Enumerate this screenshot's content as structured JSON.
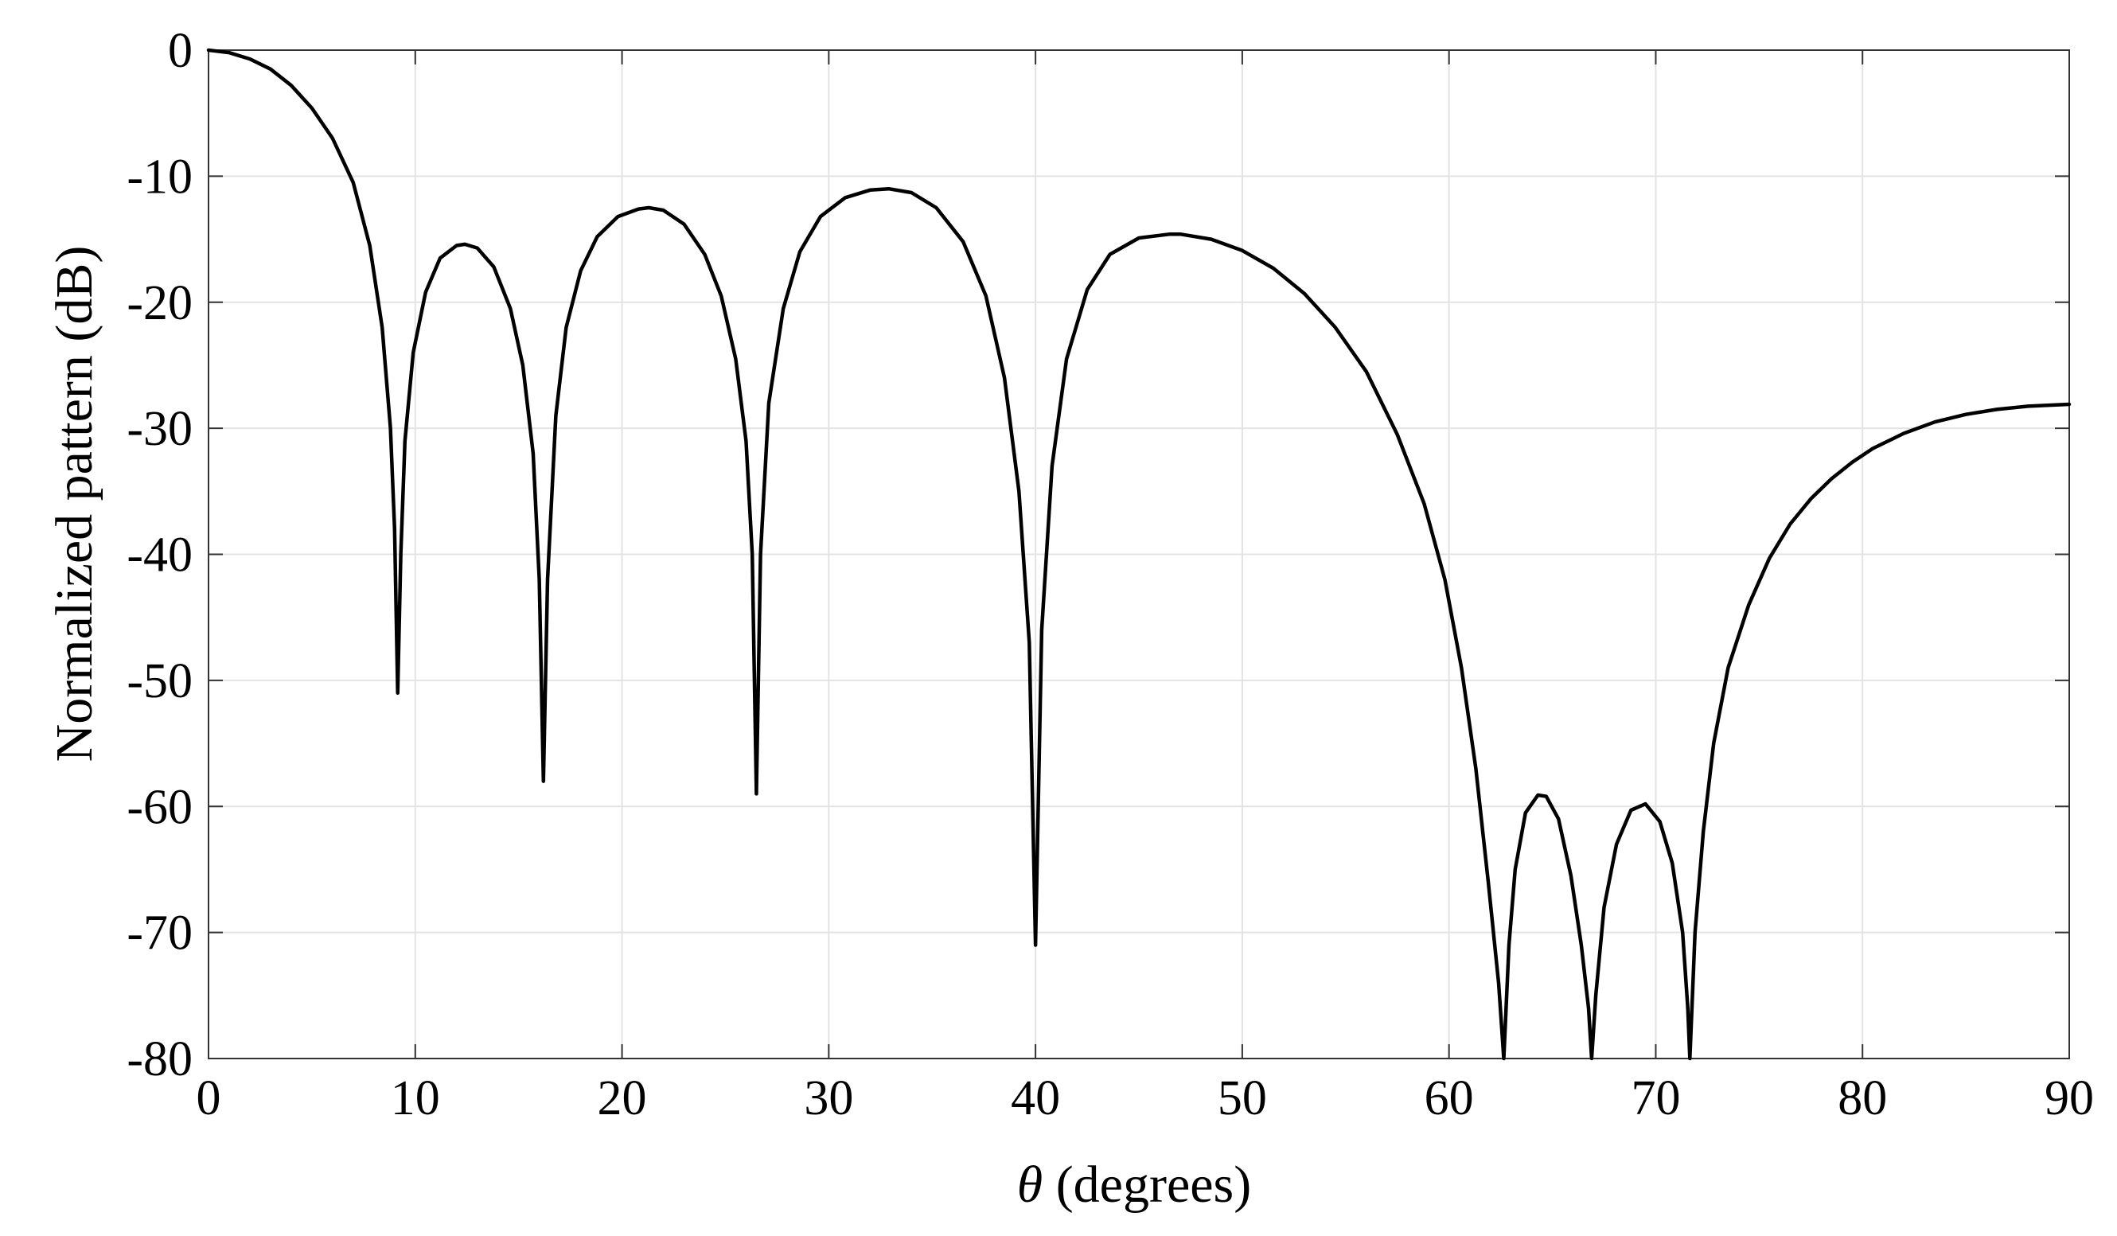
{
  "chart_data": {
    "type": "line",
    "title": "",
    "xlabel_symbol": "θ",
    "xlabel_text": " (degrees)",
    "ylabel": "Normalized pattern  (dB)",
    "xlim": [
      0,
      90
    ],
    "ylim": [
      -80,
      0
    ],
    "grid": true,
    "line_color": "#000000",
    "grid_color": "#e3e3e3",
    "xticks": [
      0,
      10,
      20,
      30,
      40,
      50,
      60,
      70,
      80,
      90
    ],
    "yticks": [
      0,
      -10,
      -20,
      -30,
      -40,
      -50,
      -60,
      -70,
      -80
    ],
    "xtick_labels": [
      "0",
      "10",
      "20",
      "30",
      "40",
      "50",
      "60",
      "70",
      "80",
      "90"
    ],
    "ytick_labels": [
      "0",
      "-10",
      "-20",
      "-30",
      "-40",
      "-50",
      "-60",
      "-70",
      "-80"
    ],
    "series": [
      {
        "name": "Normalized pattern",
        "points": [
          [
            0,
            0
          ],
          [
            1,
            -0.2
          ],
          [
            2,
            -0.7
          ],
          [
            3,
            -1.5
          ],
          [
            4,
            -2.8
          ],
          [
            5,
            -4.6
          ],
          [
            6,
            -7.0
          ],
          [
            7,
            -10.5
          ],
          [
            7.8,
            -15.5
          ],
          [
            8.4,
            -22
          ],
          [
            8.8,
            -30
          ],
          [
            9.0,
            -38
          ],
          [
            9.15,
            -51
          ],
          [
            9.3,
            -40
          ],
          [
            9.5,
            -31
          ],
          [
            9.9,
            -24
          ],
          [
            10.5,
            -19.2
          ],
          [
            11.2,
            -16.5
          ],
          [
            12.0,
            -15.5
          ],
          [
            12.4,
            -15.4
          ],
          [
            13.0,
            -15.7
          ],
          [
            13.8,
            -17.2
          ],
          [
            14.6,
            -20.5
          ],
          [
            15.2,
            -25
          ],
          [
            15.7,
            -32
          ],
          [
            16.0,
            -42
          ],
          [
            16.2,
            -58
          ],
          [
            16.4,
            -42
          ],
          [
            16.8,
            -29
          ],
          [
            17.3,
            -22
          ],
          [
            18.0,
            -17.5
          ],
          [
            18.8,
            -14.8
          ],
          [
            19.8,
            -13.2
          ],
          [
            20.8,
            -12.6
          ],
          [
            21.3,
            -12.5
          ],
          [
            22.0,
            -12.7
          ],
          [
            23.0,
            -13.8
          ],
          [
            24.0,
            -16.2
          ],
          [
            24.8,
            -19.5
          ],
          [
            25.5,
            -24.5
          ],
          [
            26.0,
            -31
          ],
          [
            26.3,
            -40
          ],
          [
            26.5,
            -59
          ],
          [
            26.7,
            -40
          ],
          [
            27.1,
            -28
          ],
          [
            27.8,
            -20.5
          ],
          [
            28.6,
            -16
          ],
          [
            29.6,
            -13.2
          ],
          [
            30.8,
            -11.7
          ],
          [
            32.0,
            -11.1
          ],
          [
            32.9,
            -11.0
          ],
          [
            34.0,
            -11.3
          ],
          [
            35.2,
            -12.5
          ],
          [
            36.5,
            -15.2
          ],
          [
            37.6,
            -19.5
          ],
          [
            38.5,
            -26
          ],
          [
            39.2,
            -35
          ],
          [
            39.7,
            -47
          ],
          [
            40.0,
            -71
          ],
          [
            40.3,
            -46
          ],
          [
            40.8,
            -33
          ],
          [
            41.5,
            -24.5
          ],
          [
            42.5,
            -19
          ],
          [
            43.6,
            -16.2
          ],
          [
            45.0,
            -14.9
          ],
          [
            46.5,
            -14.6
          ],
          [
            47.0,
            -14.6
          ],
          [
            48.5,
            -15.0
          ],
          [
            50.0,
            -15.9
          ],
          [
            51.5,
            -17.3
          ],
          [
            53.0,
            -19.3
          ],
          [
            54.5,
            -22.0
          ],
          [
            56.0,
            -25.5
          ],
          [
            57.5,
            -30.5
          ],
          [
            58.8,
            -36
          ],
          [
            59.8,
            -42
          ],
          [
            60.6,
            -49
          ],
          [
            61.3,
            -57
          ],
          [
            61.9,
            -66
          ],
          [
            62.4,
            -74
          ],
          [
            62.65,
            -80
          ],
          [
            62.9,
            -71
          ],
          [
            63.2,
            -65
          ],
          [
            63.7,
            -60.5
          ],
          [
            64.3,
            -59.1
          ],
          [
            64.7,
            -59.2
          ],
          [
            65.3,
            -61
          ],
          [
            65.9,
            -65.5
          ],
          [
            66.4,
            -71
          ],
          [
            66.75,
            -76
          ],
          [
            66.9,
            -80
          ],
          [
            67.1,
            -75
          ],
          [
            67.5,
            -68
          ],
          [
            68.1,
            -63
          ],
          [
            68.8,
            -60.3
          ],
          [
            69.5,
            -59.8
          ],
          [
            70.2,
            -61.2
          ],
          [
            70.8,
            -64.5
          ],
          [
            71.3,
            -70
          ],
          [
            71.55,
            -76
          ],
          [
            71.65,
            -80
          ],
          [
            71.9,
            -70
          ],
          [
            72.3,
            -62
          ],
          [
            72.8,
            -55
          ],
          [
            73.5,
            -49
          ],
          [
            74.5,
            -44
          ],
          [
            75.5,
            -40.3
          ],
          [
            76.5,
            -37.6
          ],
          [
            77.5,
            -35.6
          ],
          [
            78.5,
            -34.0
          ],
          [
            79.5,
            -32.7
          ],
          [
            80.5,
            -31.6
          ],
          [
            82.0,
            -30.4
          ],
          [
            83.5,
            -29.5
          ],
          [
            85.0,
            -28.9
          ],
          [
            86.5,
            -28.5
          ],
          [
            88.0,
            -28.25
          ],
          [
            90.0,
            -28.1
          ]
        ]
      }
    ]
  }
}
